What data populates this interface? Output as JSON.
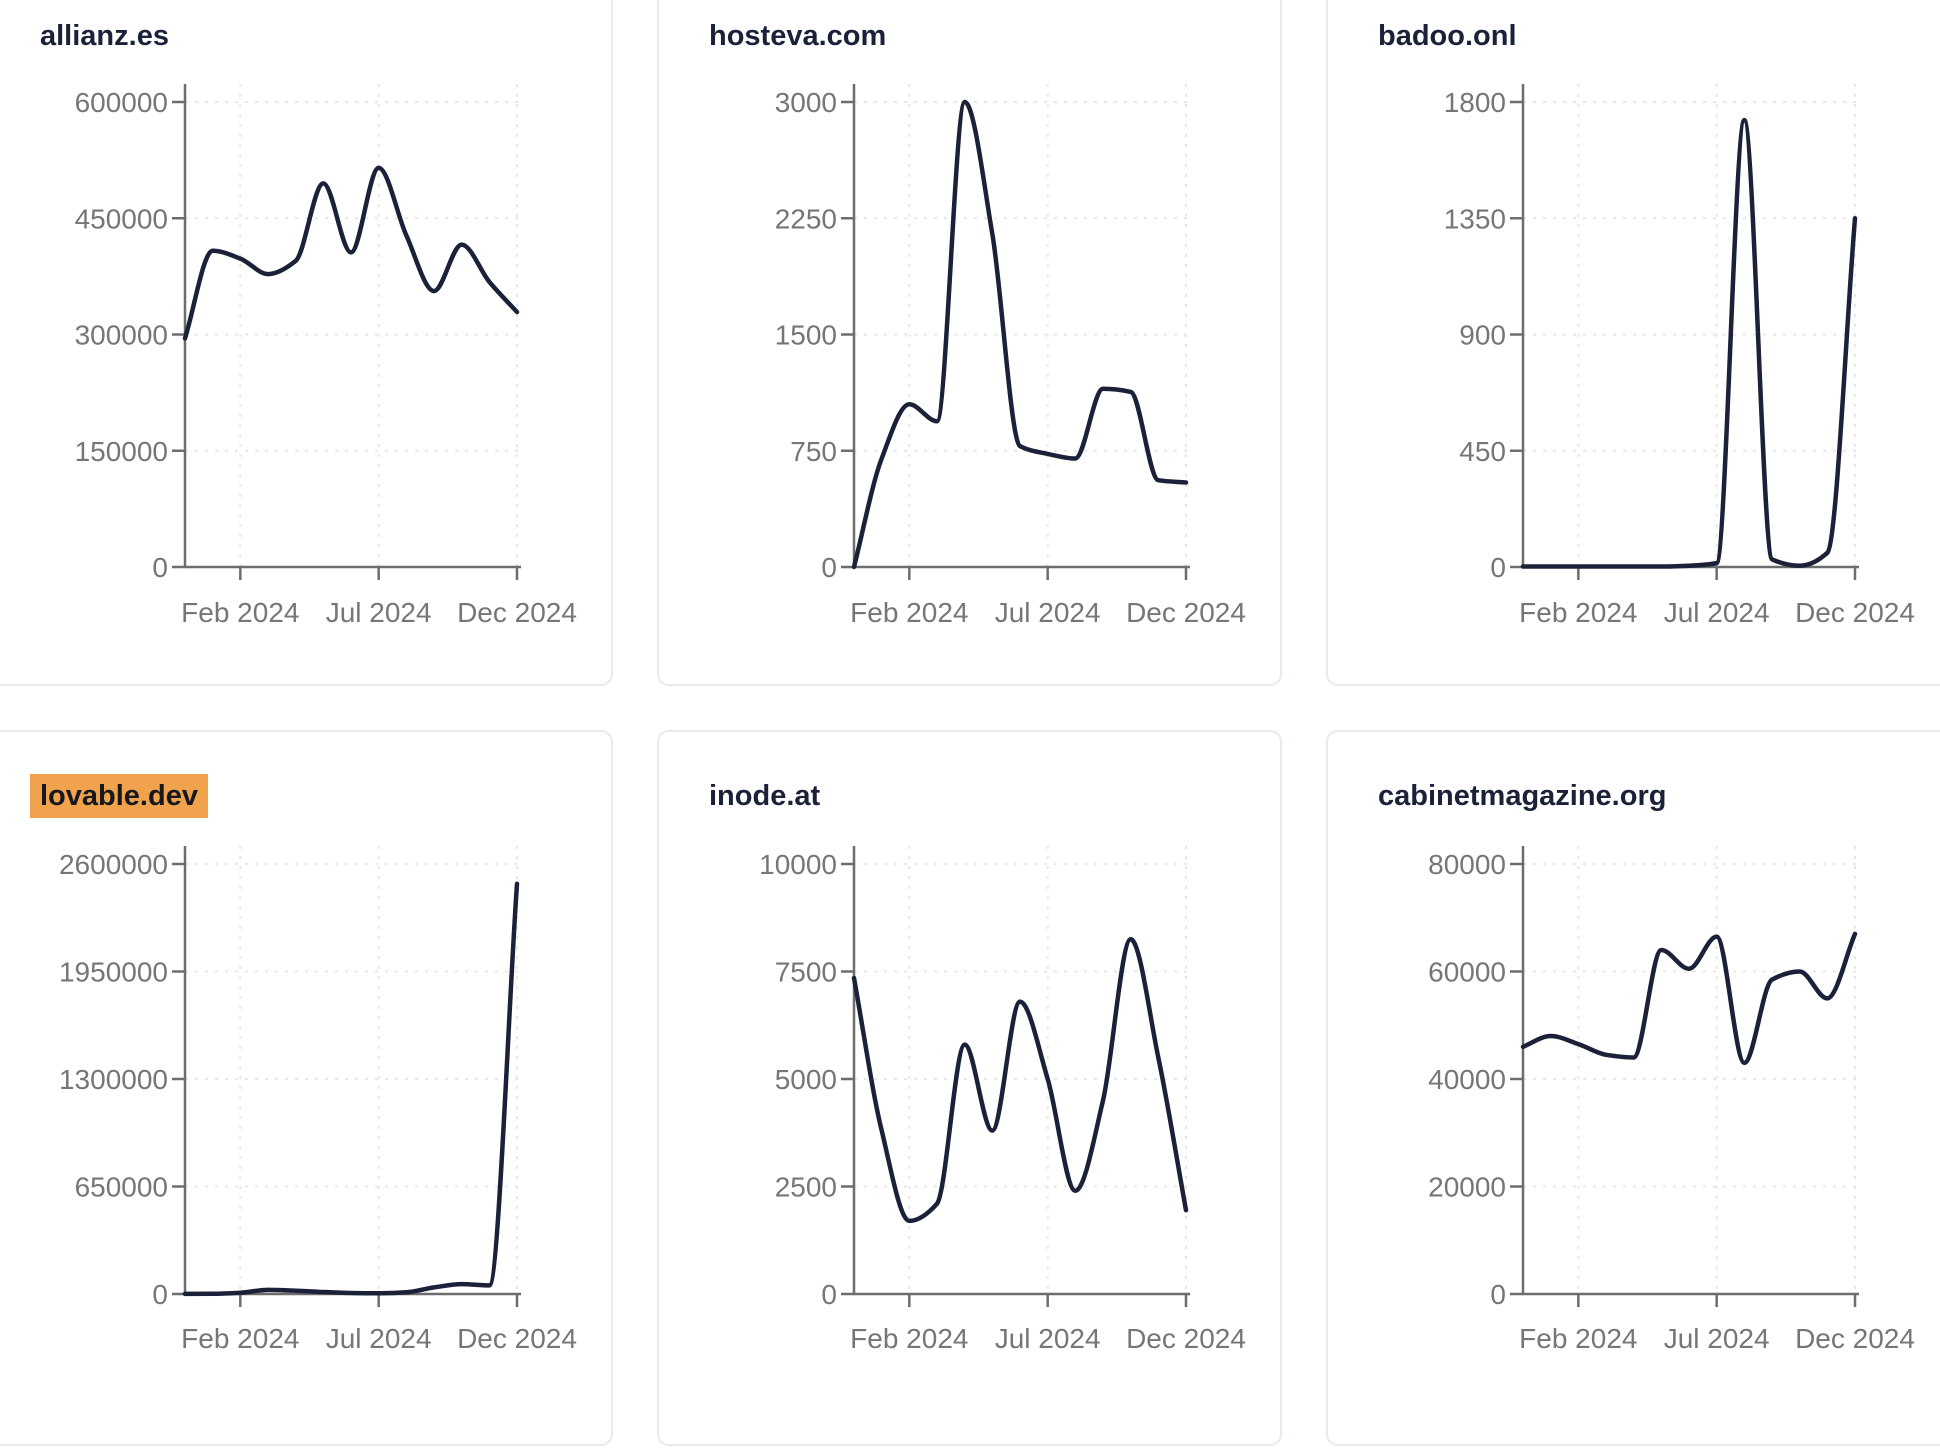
{
  "page": {
    "background": "#ffffff",
    "card_background": "#ffffff",
    "card_border_color": "#e8eaf1"
  },
  "styles": {
    "line_color": "#1b2138",
    "title_color": "#1a2138",
    "axis_color": "#6d6d6d",
    "tick_label_color": "#767676",
    "grid_color": "#e7e7e7",
    "highlight_color": "#f0a24c"
  },
  "x_axis": {
    "months": [
      "2023-12",
      "2024-01",
      "2024-02",
      "2024-03",
      "2024-04",
      "2024-05",
      "2024-06",
      "2024-07",
      "2024-08",
      "2024-09",
      "2024-10",
      "2024-11",
      "2024-12"
    ],
    "tick_labels": [
      "Feb 2024",
      "Jul 2024",
      "Dec 2024"
    ],
    "tick_positions": [
      2,
      7,
      12
    ]
  },
  "chart_data": [
    {
      "type": "line",
      "title": "allianz.es",
      "highlighted": false,
      "x": [
        "2023-12",
        "2024-01",
        "2024-02",
        "2024-03",
        "2024-04",
        "2024-05",
        "2024-06",
        "2024-07",
        "2024-08",
        "2024-09",
        "2024-10",
        "2024-11",
        "2024-12"
      ],
      "values": [
        295000,
        408000,
        398000,
        378000,
        395000,
        495000,
        406000,
        515000,
        428000,
        356000,
        416000,
        368000,
        329000
      ],
      "ylim": [
        0,
        600000
      ],
      "yticks": [
        0,
        150000,
        300000,
        450000,
        600000
      ],
      "xtick_labels": [
        "Feb 2024",
        "Jul 2024",
        "Dec 2024"
      ],
      "grid": true,
      "legend": "none"
    },
    {
      "type": "line",
      "title": "hosteva.com",
      "highlighted": false,
      "x": [
        "2023-12",
        "2024-01",
        "2024-02",
        "2024-03",
        "2024-04",
        "2024-05",
        "2024-06",
        "2024-07",
        "2024-08",
        "2024-09",
        "2024-10",
        "2024-11",
        "2024-12"
      ],
      "values": [
        0,
        700,
        1050,
        940,
        3000,
        2150,
        780,
        730,
        700,
        1150,
        1130,
        560,
        545
      ],
      "ylim": [
        0,
        3000
      ],
      "yticks": [
        0,
        750,
        1500,
        2250,
        3000
      ],
      "xtick_labels": [
        "Feb 2024",
        "Jul 2024",
        "Dec 2024"
      ],
      "grid": true,
      "legend": "none"
    },
    {
      "type": "line",
      "title": "badoo.onl",
      "highlighted": false,
      "x": [
        "2023-12",
        "2024-01",
        "2024-02",
        "2024-03",
        "2024-04",
        "2024-05",
        "2024-06",
        "2024-07",
        "2024-08",
        "2024-09",
        "2024-10",
        "2024-11",
        "2024-12"
      ],
      "values": [
        2,
        2,
        2,
        2,
        2,
        2,
        5,
        15,
        1730,
        30,
        5,
        55,
        1350
      ],
      "ylim": [
        0,
        1800
      ],
      "yticks": [
        0,
        450,
        900,
        1350,
        1800
      ],
      "xtick_labels": [
        "Feb 2024",
        "Jul 2024",
        "Dec 2024"
      ],
      "grid": true,
      "legend": "none"
    },
    {
      "type": "line",
      "title": "lovable.dev",
      "highlighted": true,
      "x": [
        "2023-12",
        "2024-01",
        "2024-02",
        "2024-03",
        "2024-04",
        "2024-05",
        "2024-06",
        "2024-07",
        "2024-08",
        "2024-09",
        "2024-10",
        "2024-11",
        "2024-12"
      ],
      "values": [
        500,
        1500,
        8000,
        25000,
        20000,
        12000,
        6000,
        4000,
        10000,
        40000,
        60000,
        52000,
        2480000
      ],
      "ylim": [
        0,
        2600000
      ],
      "yticks": [
        0,
        650000,
        1300000,
        1950000,
        2600000
      ],
      "xtick_labels": [
        "Feb 2024",
        "Jul 2024",
        "Dec 2024"
      ],
      "grid": true,
      "legend": "none"
    },
    {
      "type": "line",
      "title": "inode.at",
      "highlighted": false,
      "x": [
        "2023-12",
        "2024-01",
        "2024-02",
        "2024-03",
        "2024-04",
        "2024-05",
        "2024-06",
        "2024-07",
        "2024-08",
        "2024-09",
        "2024-10",
        "2024-11",
        "2024-12"
      ],
      "values": [
        7350,
        3800,
        1700,
        2100,
        5800,
        3800,
        6800,
        5000,
        2400,
        4500,
        8250,
        5500,
        1950
      ],
      "ylim": [
        0,
        10000
      ],
      "yticks": [
        0,
        2500,
        5000,
        7500,
        10000
      ],
      "xtick_labels": [
        "Feb 2024",
        "Jul 2024",
        "Dec 2024"
      ],
      "grid": true,
      "legend": "none"
    },
    {
      "type": "line",
      "title": "cabinetmagazine.org",
      "highlighted": false,
      "x": [
        "2023-12",
        "2024-01",
        "2024-02",
        "2024-03",
        "2024-04",
        "2024-05",
        "2024-06",
        "2024-07",
        "2024-08",
        "2024-09",
        "2024-10",
        "2024-11",
        "2024-12"
      ],
      "values": [
        46000,
        48000,
        46500,
        44500,
        44000,
        64000,
        60500,
        66500,
        43000,
        58500,
        60000,
        55000,
        67000
      ],
      "ylim": [
        0,
        80000
      ],
      "yticks": [
        0,
        20000,
        40000,
        60000,
        80000
      ],
      "xtick_labels": [
        "Feb 2024",
        "Jul 2024",
        "Dec 2024"
      ],
      "grid": true,
      "legend": "none"
    }
  ]
}
